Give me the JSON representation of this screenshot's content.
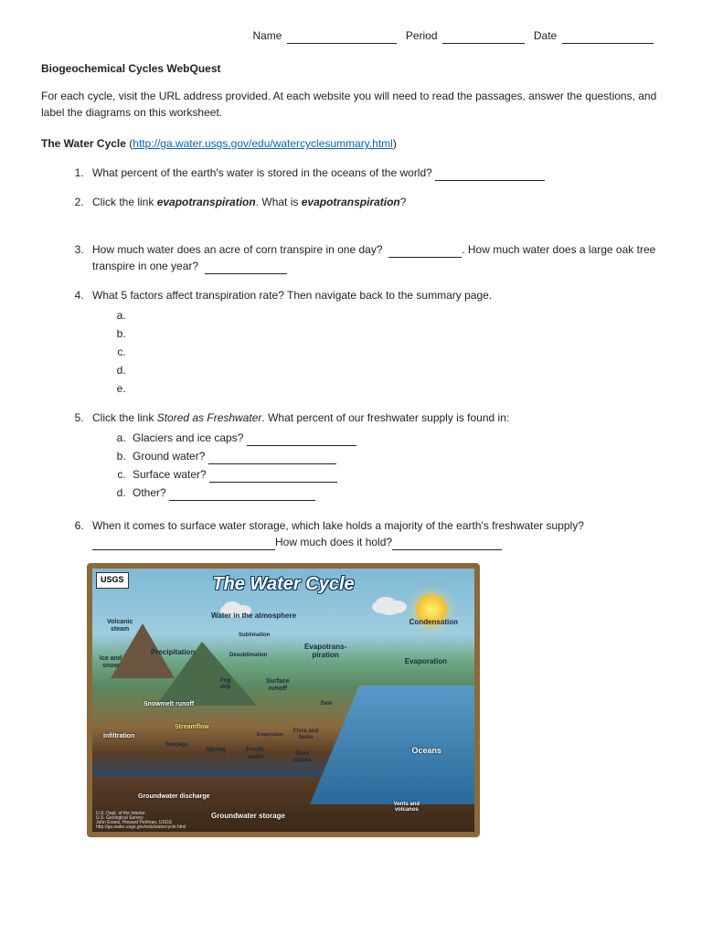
{
  "header": {
    "name_label": "Name",
    "period_label": "Period",
    "date_label": "Date"
  },
  "title": "Biogeochemical Cycles WebQuest",
  "intro": "For each cycle, visit the URL address provided.  At each website you will need to read the passages, answer the questions, and label the diagrams on this worksheet.",
  "section1": {
    "title": "The Water Cycle",
    "url": "http://ga.water.usgs.gov/edu/watercyclesummary.html"
  },
  "questions": {
    "q1": "What percent of the earth's water is stored in the oceans of the world?",
    "q2_pre": "Click the link ",
    "q2_link": "evapotranspiration",
    "q2_mid": ".  What is ",
    "q2_term": "evapotranspiration",
    "q2_end": "?",
    "q3_a": "How much water does an acre of corn transpire in one day?",
    "q3_b": ".   How much water does a large oak tree transpire in one year?",
    "q4": "What 5 factors affect transpiration rate?  Then navigate back to the summary page.",
    "q4_items": {
      "a": "",
      "b": "",
      "c": "",
      "d": "",
      "e": ""
    },
    "q5_pre": "Click the link ",
    "q5_link": "Stored as Freshwater",
    "q5_end": ".  What percent of our freshwater supply is found in:",
    "q5a": "Glaciers and ice caps?",
    "q5b": "Ground water?",
    "q5c": "Surface water?",
    "q5d": "Other?",
    "q6_a": "When it comes to surface water storage, which lake holds a majority of the earth's freshwater supply?",
    "q6_b": "How much does it hold?"
  },
  "diagram": {
    "usgs_label": "USGS",
    "title": "The Water Cycle",
    "labels": {
      "volcanic_steam": "Volcanic\nsteam",
      "water_atmos": "Water in the atmosphere",
      "condensation": "Condensation",
      "ice_snow": "Ice and\nsnow",
      "precipitation": "Precipitation",
      "sublimation": "Sublimation",
      "desublimation": "Desublimation",
      "evapotrans": "Evapotrans-\npiration",
      "evaporation": "Evaporation",
      "fog_drip": "Fog\ndrip",
      "surface_runoff": "Surface\nrunoff",
      "snowmelt": "Snowmelt runoff",
      "streamflow": "Streamflow",
      "infiltration": "Infiltration",
      "seepage": "Seepage",
      "spring": "Spring",
      "freshwater": "Fresh-\nwater",
      "evaporation2": "Evaporation",
      "dew": "Dew",
      "flora_fauna": "Flora and\nfauna",
      "plant_uptake": "Plant\nuptake",
      "oceans": "Oceans",
      "gw_discharge": "Groundwater discharge",
      "gw_storage": "Groundwater storage",
      "vents": "Vents and\nvolcanos"
    },
    "credit": "U.S. Dept. of the Interior\nU.S. Geological Survey\nJohn Evans, Howard Perlman, USGS\nhttp://ga.water.usgs.gov/edu/watercycle.html",
    "colors": {
      "border": "#8a6a3a",
      "sky": "#7fb8d4",
      "ocean": "#2a6a9a",
      "land": "#5a8860",
      "ground": "#5a3e26",
      "arrow": "#3a6aa8",
      "sun": "#f5c23e"
    }
  }
}
